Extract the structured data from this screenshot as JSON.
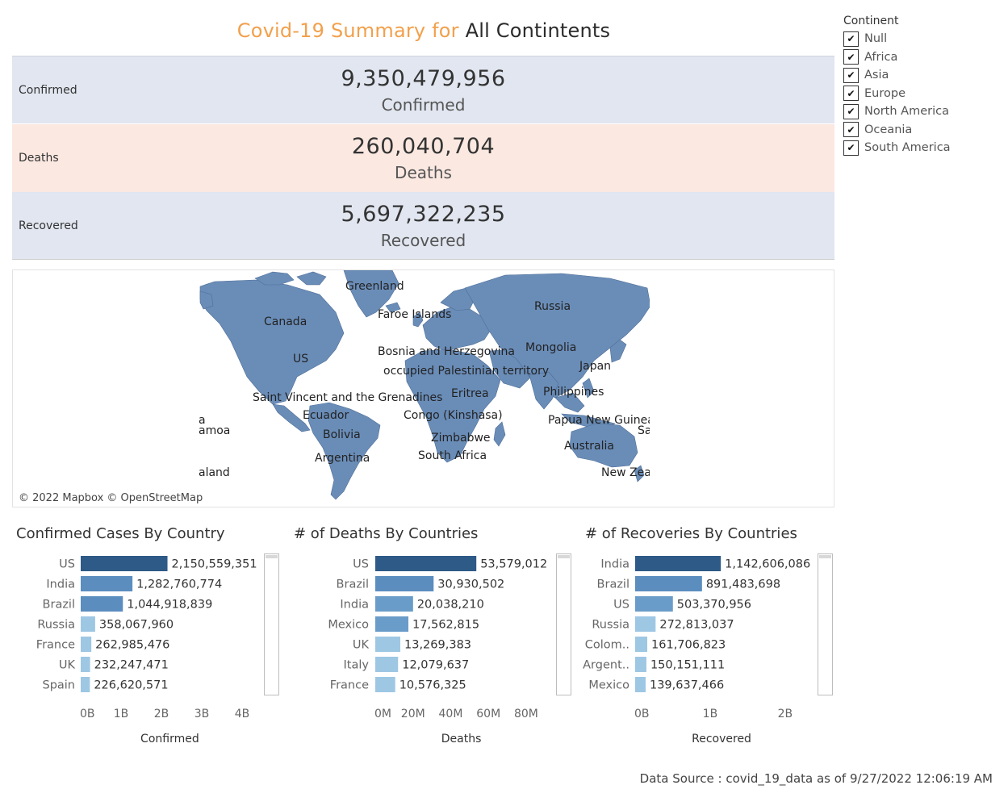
{
  "title": {
    "prefix": "Covid-19 Summary for",
    "selection": "All Contintents"
  },
  "kpis": {
    "confirmed": {
      "row_label": "Confirmed",
      "value": "9,350,479,956",
      "sub": "Confirmed"
    },
    "deaths": {
      "row_label": "Deaths",
      "value": "260,040,704",
      "sub": "Deaths"
    },
    "recovered": {
      "row_label": "Recovered",
      "value": "5,697,322,235",
      "sub": "Recovered"
    }
  },
  "filter": {
    "title": "Continent",
    "items": [
      {
        "label": "Null",
        "checked": true
      },
      {
        "label": "Africa",
        "checked": true
      },
      {
        "label": "Asia",
        "checked": true
      },
      {
        "label": "Europe",
        "checked": true
      },
      {
        "label": "North America",
        "checked": true
      },
      {
        "label": "Oceania",
        "checked": true
      },
      {
        "label": "South America",
        "checked": true
      }
    ]
  },
  "map": {
    "credit": "© 2022 Mapbox © OpenStreetMap",
    "land_color": "#6a8db8",
    "labels": [
      "Greenland",
      "Faroe Islands",
      "Russia",
      "Canada",
      "US",
      "Bosnia and Herzegovina",
      "Mongolia",
      "occupied Palestinian territory",
      "Japan",
      "Philippines",
      "Saint Vincent and the Grenadines",
      "Eritrea",
      "Ecuador",
      "Congo (Kinshasa)",
      "Papua New Guinea",
      "Bolivia",
      "Zimbabwe",
      "Australia",
      "Argentina",
      "South Africa",
      "New Zea",
      "a",
      "amoa",
      "aland",
      "Sa"
    ]
  },
  "colors": {
    "bar_dark": "#2e5a87",
    "bar_mid": "#5b8dbf",
    "bar_light": "#9ec7e4",
    "accent": "#f2a04c"
  },
  "chart_data": [
    {
      "type": "bar",
      "orientation": "horizontal",
      "title": "Confirmed Cases By Country",
      "xlabel": "Confirmed",
      "categories": [
        "US",
        "India",
        "Brazil",
        "Russia",
        "France",
        "UK",
        "Spain"
      ],
      "values": [
        2150559351,
        1282760774,
        1044918839,
        358067960,
        262985476,
        232247471,
        226620571
      ],
      "value_labels": [
        "2,150,559,351",
        "1,282,760,774",
        "1,044,918,839",
        "358,067,960",
        "262,985,476",
        "232,247,471",
        "226,620,571"
      ],
      "xticks": [
        "0B",
        "1B",
        "2B",
        "3B",
        "4B"
      ],
      "xtick_values": [
        0,
        1000000000,
        2000000000,
        3000000000,
        4000000000
      ],
      "xlim": [
        0,
        4600000000
      ]
    },
    {
      "type": "bar",
      "orientation": "horizontal",
      "title": "# of Deaths By Countries",
      "xlabel": "Deaths",
      "categories": [
        "US",
        "Brazil",
        "India",
        "Mexico",
        "UK",
        "Italy",
        "France"
      ],
      "values": [
        53579012,
        30930502,
        20038210,
        17562815,
        13269383,
        12079637,
        10576325
      ],
      "value_labels": [
        "53,579,012",
        "30,930,502",
        "20,038,210",
        "17,562,815",
        "13,269,383",
        "12,079,637",
        "10,576,325"
      ],
      "xticks": [
        "0M",
        "20M",
        "40M",
        "60M",
        "80M"
      ],
      "xtick_values": [
        0,
        20000000,
        40000000,
        60000000,
        80000000
      ],
      "xlim": [
        0,
        95000000
      ]
    },
    {
      "type": "bar",
      "orientation": "horizontal",
      "title": "# of Recoveries By Countries",
      "xlabel": "Recovered",
      "categories": [
        "India",
        "Brazil",
        "US",
        "Russia",
        "Colom..",
        "Argent..",
        "Mexico"
      ],
      "values": [
        1142606086,
        891483698,
        503370956,
        272813037,
        161706823,
        150151111,
        139637466
      ],
      "value_labels": [
        "1,142,606,086",
        "891,483,698",
        "503,370,956",
        "272,813,037",
        "161,706,823",
        "150,151,111",
        "139,637,466"
      ],
      "xticks": [
        "0B",
        "1B",
        "2B"
      ],
      "xtick_values": [
        0,
        1000000000,
        2000000000
      ],
      "xlim": [
        0,
        2400000000
      ]
    }
  ],
  "footer": {
    "text": "Data Source : covid_19_data as of 9/27/2022 12:06:19 AM"
  }
}
